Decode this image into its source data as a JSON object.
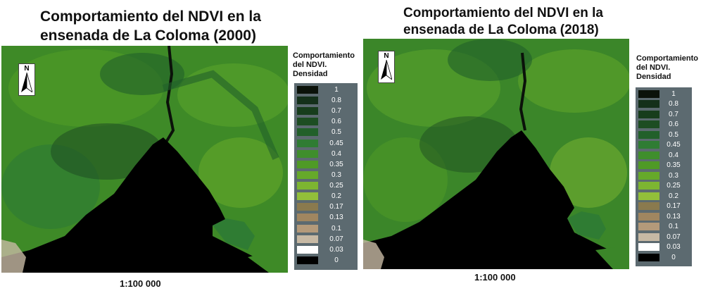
{
  "panels": [
    {
      "title_line1": "Comportamiento del NDVI en la",
      "title_line2": "ensenada de La Coloma (2000)",
      "scale": "1:100 000",
      "north": "N",
      "legend_title_l1": "Comportamiento",
      "legend_title_l2": "del NDVI.",
      "legend_title_l3": "Densidad"
    },
    {
      "title_line1": "Comportamiento del NDVI en la",
      "title_line2": "ensenada de La Coloma (2018)",
      "scale": "1:100 000",
      "north": "N",
      "legend_title_l1": "Comportamiento",
      "legend_title_l2": "del NDVI.",
      "legend_title_l3": "Densidad"
    }
  ],
  "legend_classes": [
    {
      "label": "1",
      "color": "#0b120a"
    },
    {
      "label": "0.8",
      "color": "#14301a"
    },
    {
      "label": "0.7",
      "color": "#173d1c"
    },
    {
      "label": "0.6",
      "color": "#1d4d22"
    },
    {
      "label": "0.5",
      "color": "#22602a"
    },
    {
      "label": "0.45",
      "color": "#2f7c33"
    },
    {
      "label": "0.4",
      "color": "#3f8e2c"
    },
    {
      "label": "0.35",
      "color": "#4f9a26"
    },
    {
      "label": "0.3",
      "color": "#66a92a"
    },
    {
      "label": "0.25",
      "color": "#7db531"
    },
    {
      "label": "0.2",
      "color": "#92bf3a"
    },
    {
      "label": "0.17",
      "color": "#8a7a4e"
    },
    {
      "label": "0.13",
      "color": "#a08660"
    },
    {
      "label": "0.1",
      "color": "#b49a7a"
    },
    {
      "label": "0.07",
      "color": "#c7b9a4"
    },
    {
      "label": "0.03",
      "color": "#ffffff"
    },
    {
      "label": "0",
      "color": "#000000"
    }
  ]
}
